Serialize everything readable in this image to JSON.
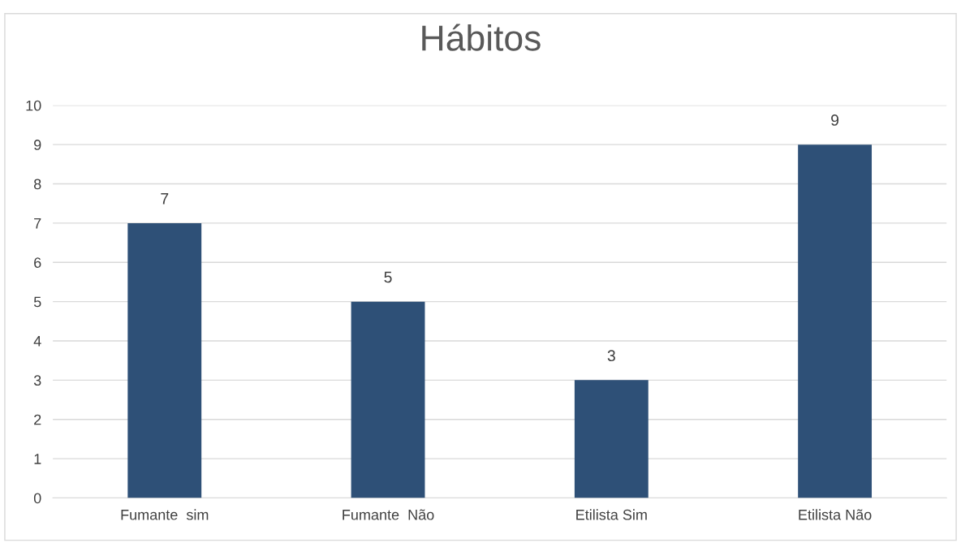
{
  "chart_data": {
    "type": "bar",
    "title": "Hábitos",
    "categories": [
      "Fumante  sim",
      "Fumante  Não",
      "Etilista Sim",
      "Etilista Não"
    ],
    "values": [
      7,
      5,
      3,
      9
    ],
    "color": "#2e5077",
    "ylim": [
      0,
      10
    ],
    "yticks": [
      0,
      1,
      2,
      3,
      4,
      5,
      6,
      7,
      8,
      9,
      10
    ],
    "grid": "y",
    "data_labels": true
  }
}
